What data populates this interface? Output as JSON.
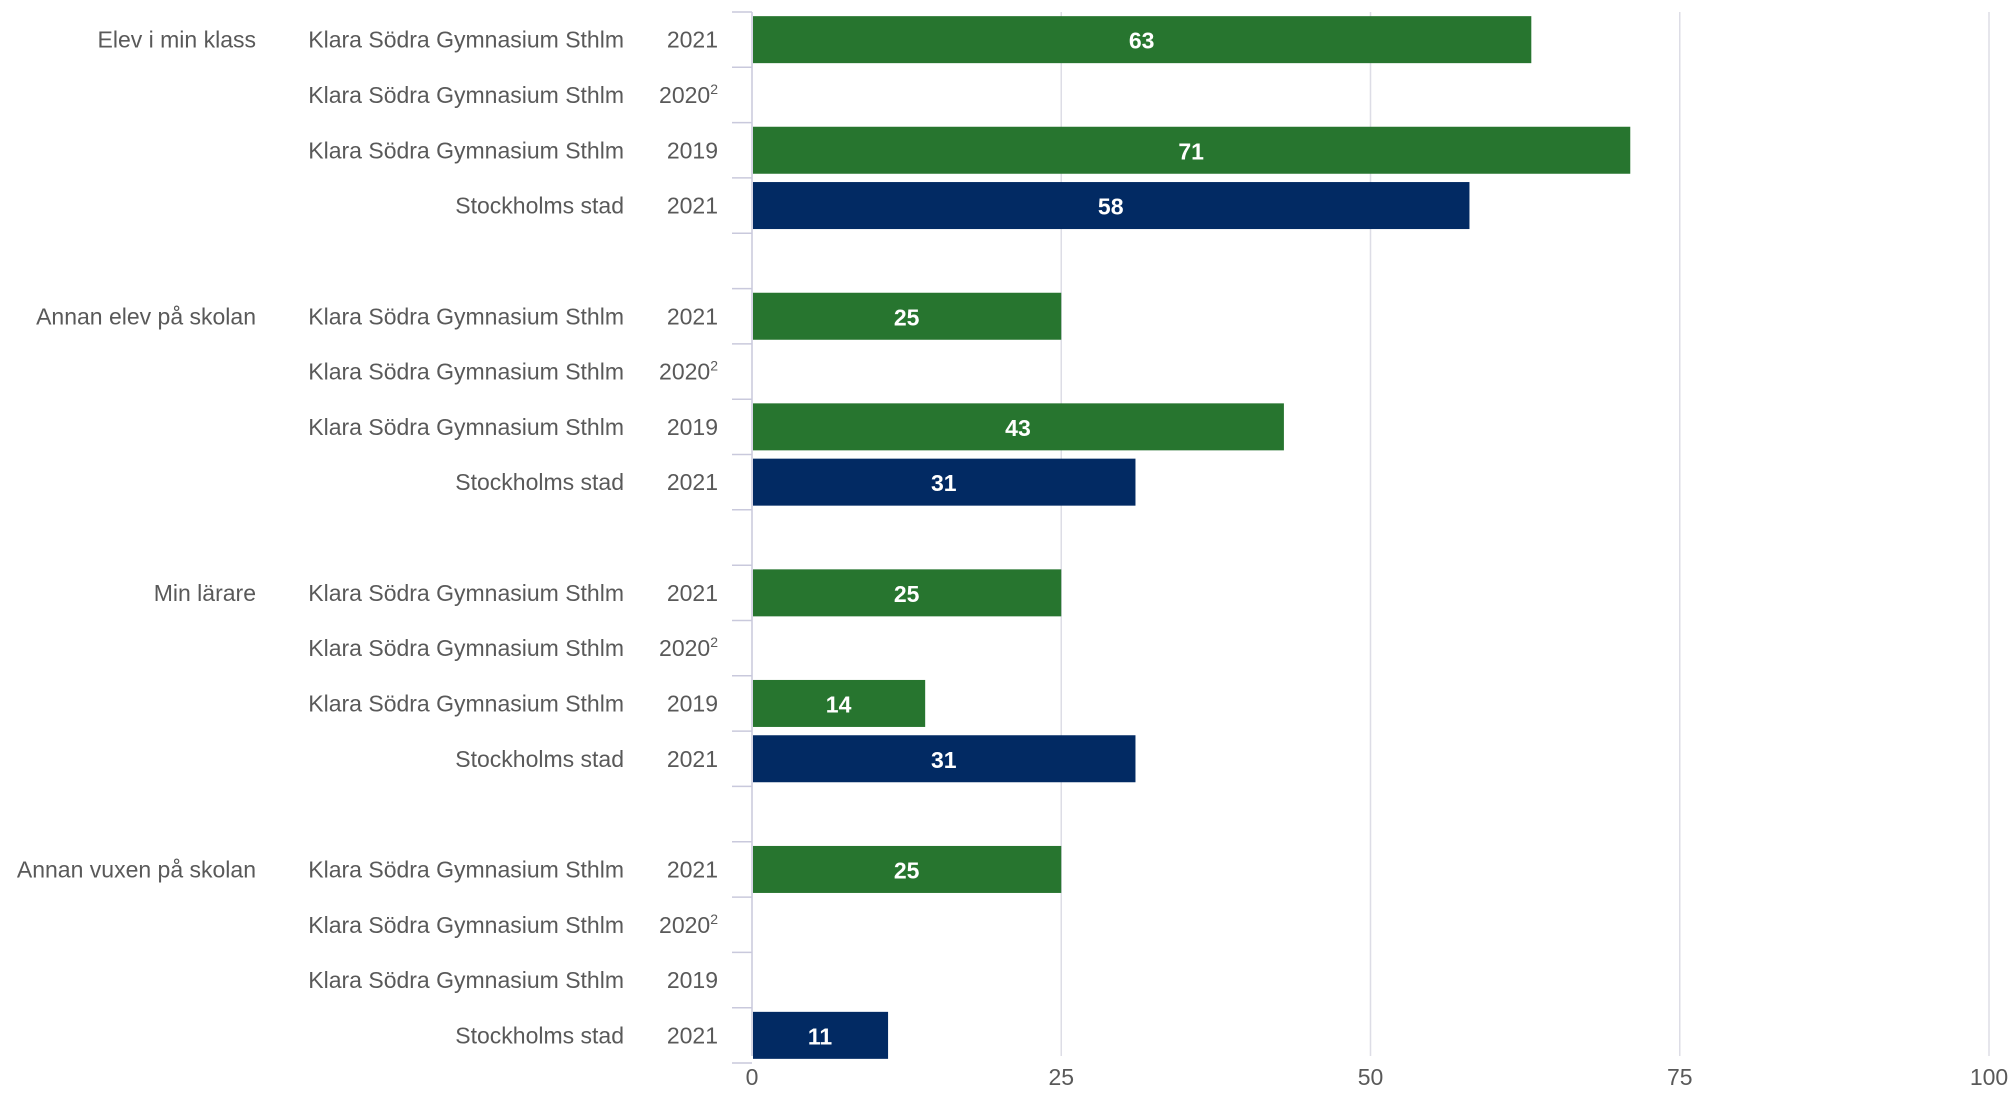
{
  "chart_data": {
    "type": "bar",
    "orientation": "horizontal",
    "xlim": [
      0,
      100
    ],
    "xticks": [
      "0",
      "25",
      "50",
      "75",
      "100"
    ],
    "grid": true,
    "colors": {
      "school": "#27752f",
      "city": "#022a63",
      "grid": "#dddde6",
      "axis": "#c9c9dc",
      "text": "#595959"
    },
    "groups": [
      {
        "label": "Elev i min klass",
        "rows": [
          {
            "unit": "Klara Södra Gymnasium Sthlm",
            "year": "2021",
            "year_note": "",
            "value": 63,
            "series": "school"
          },
          {
            "unit": "Klara Södra Gymnasium Sthlm",
            "year": "2020",
            "year_note": "2",
            "value": null,
            "series": "school"
          },
          {
            "unit": "Klara Södra Gymnasium Sthlm",
            "year": "2019",
            "year_note": "",
            "value": 71,
            "series": "school"
          },
          {
            "unit": "Stockholms stad",
            "year": "2021",
            "year_note": "",
            "value": 58,
            "series": "city"
          }
        ]
      },
      {
        "label": "Annan elev på skolan",
        "rows": [
          {
            "unit": "Klara Södra Gymnasium Sthlm",
            "year": "2021",
            "year_note": "",
            "value": 25,
            "series": "school"
          },
          {
            "unit": "Klara Södra Gymnasium Sthlm",
            "year": "2020",
            "year_note": "2",
            "value": null,
            "series": "school"
          },
          {
            "unit": "Klara Södra Gymnasium Sthlm",
            "year": "2019",
            "year_note": "",
            "value": 43,
            "series": "school"
          },
          {
            "unit": "Stockholms stad",
            "year": "2021",
            "year_note": "",
            "value": 31,
            "series": "city"
          }
        ]
      },
      {
        "label": "Min lärare",
        "rows": [
          {
            "unit": "Klara Södra Gymnasium Sthlm",
            "year": "2021",
            "year_note": "",
            "value": 25,
            "series": "school"
          },
          {
            "unit": "Klara Södra Gymnasium Sthlm",
            "year": "2020",
            "year_note": "2",
            "value": null,
            "series": "school"
          },
          {
            "unit": "Klara Södra Gymnasium Sthlm",
            "year": "2019",
            "year_note": "",
            "value": 14,
            "series": "school"
          },
          {
            "unit": "Stockholms stad",
            "year": "2021",
            "year_note": "",
            "value": 31,
            "series": "city"
          }
        ]
      },
      {
        "label": "Annan vuxen på skolan",
        "rows": [
          {
            "unit": "Klara Södra Gymnasium Sthlm",
            "year": "2021",
            "year_note": "",
            "value": 25,
            "series": "school"
          },
          {
            "unit": "Klara Södra Gymnasium Sthlm",
            "year": "2020",
            "year_note": "2",
            "value": null,
            "series": "school"
          },
          {
            "unit": "Klara Södra Gymnasium Sthlm",
            "year": "2019",
            "year_note": "",
            "value": null,
            "series": "school"
          },
          {
            "unit": "Stockholms stad",
            "year": "2021",
            "year_note": "",
            "value": 11,
            "series": "city"
          }
        ]
      }
    ]
  }
}
